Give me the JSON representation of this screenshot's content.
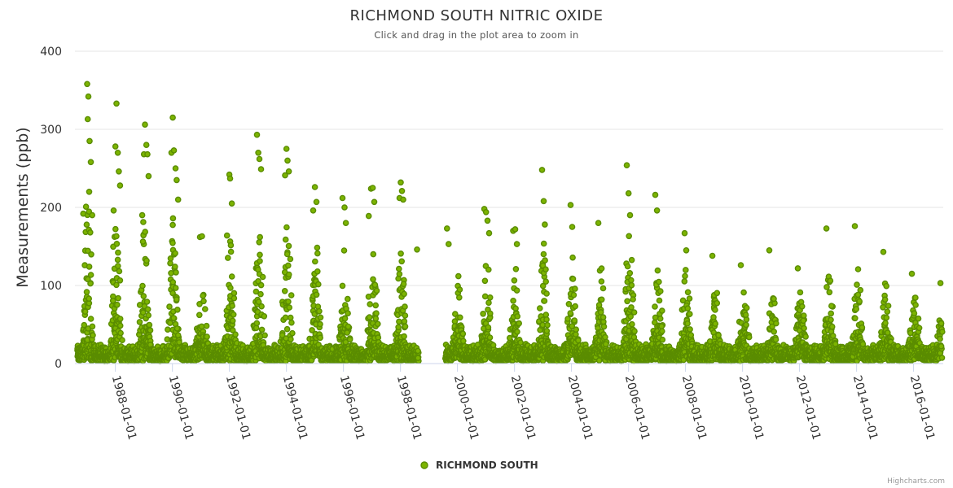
{
  "chart_data": {
    "type": "scatter",
    "title": "RICHMOND SOUTH NITRIC OXIDE",
    "subtitle": "Click and drag in the plot area to zoom in",
    "xlabel": "",
    "ylabel": "Measurements (ppb)",
    "ylim": [
      0,
      400
    ],
    "yticks": [
      "0",
      "100",
      "200",
      "300",
      "400"
    ],
    "xlim": [
      "1986-08-01",
      "2017-01-15"
    ],
    "xticks": [
      "1988-01-01",
      "1990-01-01",
      "1992-01-01",
      "1994-01-01",
      "1996-01-01",
      "1998-01-01",
      "2000-01-01",
      "2002-01-01",
      "2004-01-01",
      "2006-01-01",
      "2008-01-01",
      "2010-01-01",
      "2012-01-01",
      "2014-01-01",
      "2016-01-01"
    ],
    "grid": "horizontal",
    "legend_position": "bottom-center",
    "point_fill": "#7cb400",
    "point_stroke": "#5a8c00",
    "data_gap": [
      "1998-08-15",
      "1999-08-01"
    ],
    "series": [
      {
        "name": "RICHMOND SOUTH",
        "color": "#7cb400",
        "peaks": [
          {
            "date": "1986-11-15",
            "value": 192
          },
          {
            "date": "1987-01-05",
            "value": 358
          },
          {
            "date": "1987-01-20",
            "value": 342
          },
          {
            "date": "1987-02-05",
            "value": 285
          },
          {
            "date": "1987-01-12",
            "value": 313
          },
          {
            "date": "1987-02-20",
            "value": 258
          },
          {
            "date": "1987-03-10",
            "value": 190
          },
          {
            "date": "1987-12-10",
            "value": 196
          },
          {
            "date": "1988-01-02",
            "value": 278
          },
          {
            "date": "1988-01-15",
            "value": 333
          },
          {
            "date": "1988-02-01",
            "value": 270
          },
          {
            "date": "1988-02-15",
            "value": 246
          },
          {
            "date": "1988-03-01",
            "value": 228
          },
          {
            "date": "1988-12-10",
            "value": 190
          },
          {
            "date": "1989-01-01",
            "value": 268
          },
          {
            "date": "1989-01-15",
            "value": 306
          },
          {
            "date": "1989-02-01",
            "value": 280
          },
          {
            "date": "1989-02-15",
            "value": 268
          },
          {
            "date": "1989-03-01",
            "value": 240
          },
          {
            "date": "1989-12-20",
            "value": 270
          },
          {
            "date": "1990-01-05",
            "value": 315
          },
          {
            "date": "1990-01-20",
            "value": 273
          },
          {
            "date": "1990-02-10",
            "value": 250
          },
          {
            "date": "1990-02-25",
            "value": 235
          },
          {
            "date": "1990-03-15",
            "value": 210
          },
          {
            "date": "1990-12-20",
            "value": 162
          },
          {
            "date": "1991-01-15",
            "value": 163
          },
          {
            "date": "1991-12-01",
            "value": 164
          },
          {
            "date": "1992-01-01",
            "value": 242
          },
          {
            "date": "1992-01-10",
            "value": 237
          },
          {
            "date": "1992-02-01",
            "value": 205
          },
          {
            "date": "1992-12-20",
            "value": 293
          },
          {
            "date": "1993-01-05",
            "value": 270
          },
          {
            "date": "1993-01-20",
            "value": 262
          },
          {
            "date": "1993-02-10",
            "value": 249
          },
          {
            "date": "1993-12-15",
            "value": 241
          },
          {
            "date": "1994-01-01",
            "value": 275
          },
          {
            "date": "1994-01-15",
            "value": 260
          },
          {
            "date": "1994-02-01",
            "value": 246
          },
          {
            "date": "1994-12-10",
            "value": 196
          },
          {
            "date": "1995-01-01",
            "value": 226
          },
          {
            "date": "1995-01-20",
            "value": 207
          },
          {
            "date": "1995-12-20",
            "value": 212
          },
          {
            "date": "1996-01-15",
            "value": 200
          },
          {
            "date": "1996-02-01",
            "value": 180
          },
          {
            "date": "1996-11-20",
            "value": 189
          },
          {
            "date": "1996-12-20",
            "value": 224
          },
          {
            "date": "1997-01-10",
            "value": 225
          },
          {
            "date": "1997-01-30",
            "value": 207
          },
          {
            "date": "1997-12-20",
            "value": 212
          },
          {
            "date": "1998-01-05",
            "value": 232
          },
          {
            "date": "1998-01-20",
            "value": 221
          },
          {
            "date": "1998-02-05",
            "value": 210
          },
          {
            "date": "1998-08-01",
            "value": 146
          },
          {
            "date": "1999-08-20",
            "value": 173
          },
          {
            "date": "1999-09-10",
            "value": 153
          },
          {
            "date": "2000-12-10",
            "value": 198
          },
          {
            "date": "2001-01-01",
            "value": 194
          },
          {
            "date": "2001-01-20",
            "value": 183
          },
          {
            "date": "2001-02-10",
            "value": 167
          },
          {
            "date": "2001-12-15",
            "value": 170
          },
          {
            "date": "2002-01-10",
            "value": 172
          },
          {
            "date": "2002-02-01",
            "value": 153
          },
          {
            "date": "2002-12-20",
            "value": 248
          },
          {
            "date": "2003-01-10",
            "value": 208
          },
          {
            "date": "2003-01-25",
            "value": 178
          },
          {
            "date": "2003-12-20",
            "value": 203
          },
          {
            "date": "2004-01-10",
            "value": 175
          },
          {
            "date": "2004-12-10",
            "value": 180
          },
          {
            "date": "2005-12-10",
            "value": 254
          },
          {
            "date": "2006-01-01",
            "value": 218
          },
          {
            "date": "2006-01-20",
            "value": 190
          },
          {
            "date": "2006-12-10",
            "value": 216
          },
          {
            "date": "2007-01-01",
            "value": 196
          },
          {
            "date": "2007-12-20",
            "value": 167
          },
          {
            "date": "2008-01-10",
            "value": 145
          },
          {
            "date": "2008-12-10",
            "value": 138
          },
          {
            "date": "2009-12-10",
            "value": 126
          },
          {
            "date": "2010-12-10",
            "value": 145
          },
          {
            "date": "2011-12-10",
            "value": 122
          },
          {
            "date": "2012-12-10",
            "value": 173
          },
          {
            "date": "2013-12-10",
            "value": 176
          },
          {
            "date": "2014-12-10",
            "value": 143
          },
          {
            "date": "2015-12-10",
            "value": 115
          },
          {
            "date": "2016-12-10",
            "value": 103
          }
        ]
      }
    ]
  },
  "legend": {
    "label": "RICHMOND SOUTH"
  },
  "credits": "Highcharts.com"
}
